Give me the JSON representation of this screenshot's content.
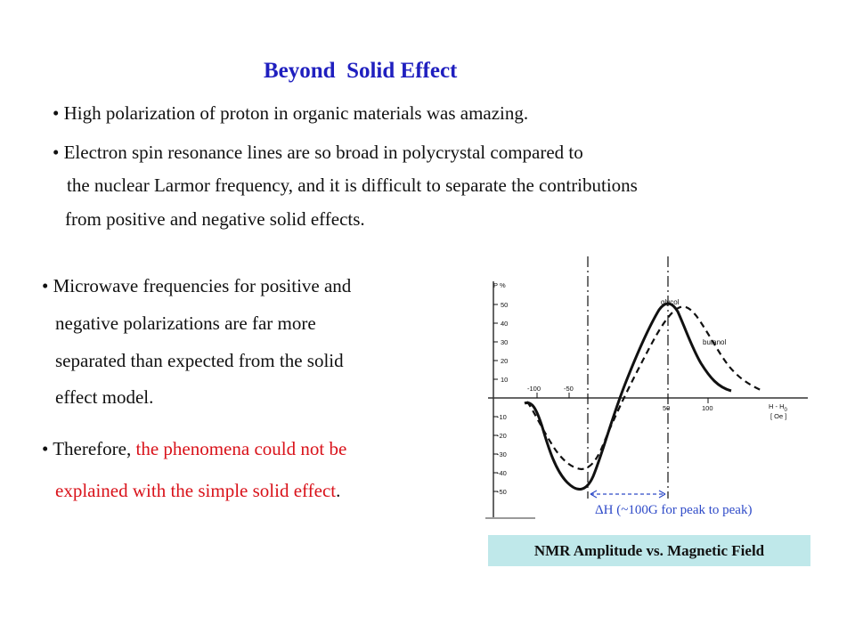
{
  "slide": {
    "title": "Beyond  Solid Effect",
    "bullets_top": [
      "• High polarization of proton in organic materials was amazing.",
      "• Electron spin resonance lines are so broad in polycrystal compared to",
      "the nuclear Larmor frequency, and it is difficult to separate the contributions",
      "from positive and negative solid effects."
    ],
    "left_text": [
      "• Microwave frequencies for positive and",
      "negative polarizations are far more",
      "separated than expected from the solid",
      "effect model."
    ],
    "therefore": {
      "prefix": "• Therefore, ",
      "red_1": "the phenomena could not be",
      "red_2": "explained with the simple solid effect",
      "suffix": "."
    }
  },
  "figure": {
    "ylabel": "P %",
    "y_ticks": [
      "50",
      "40",
      "30",
      "20",
      "10",
      "-10",
      "-20",
      "-30",
      "-40",
      "-50"
    ],
    "x_ticks": [
      "-100",
      "-50",
      "50",
      "100"
    ],
    "xlabel_1": "H - H",
    "xlabel_1_sub": "0",
    "xlabel_2": "[ Oe ]",
    "curve_label_1": "glycol",
    "curve_label_2": "butanol",
    "annotation": "ΔH (~100G for peak to peak)",
    "caption": "NMR Amplitude vs. Magnetic Field",
    "colors": {
      "title": "#1f1fbf",
      "red_text": "#d9121a",
      "annotation": "#2e4ac8",
      "caption_bg": "#bfe8ea"
    }
  }
}
